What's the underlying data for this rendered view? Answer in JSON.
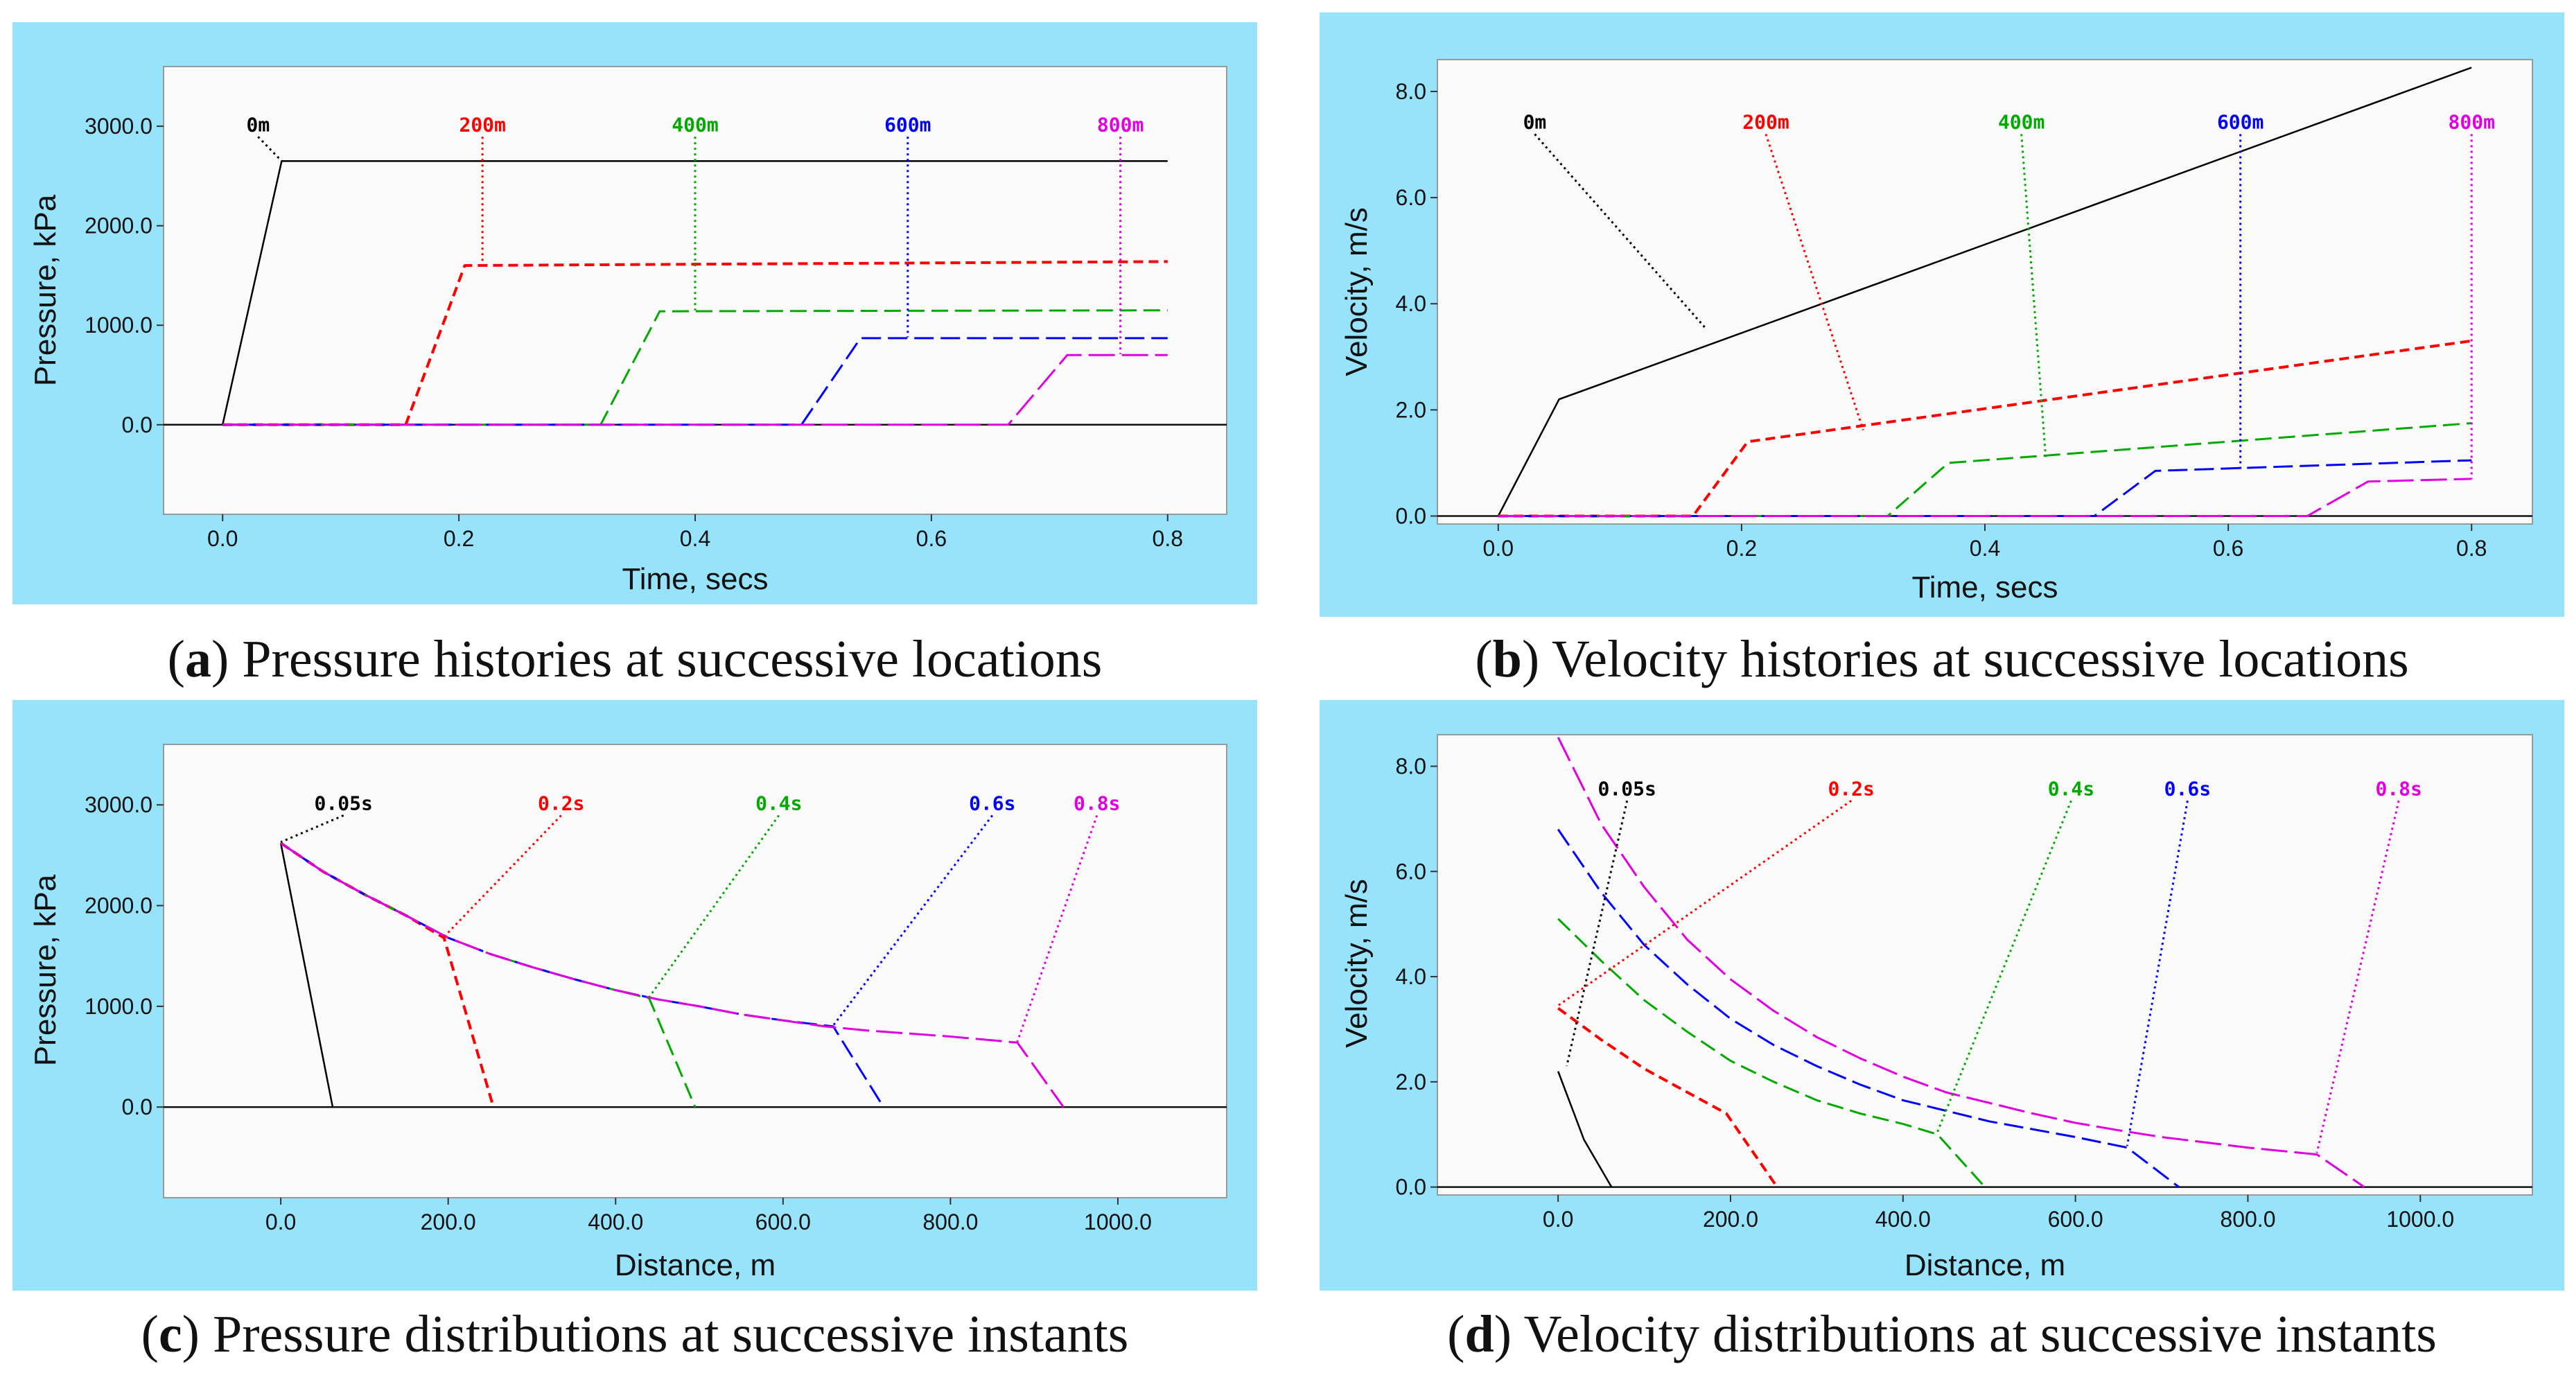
{
  "figure_captions": [
    {
      "letter": "a",
      "text": " Pressure histories at successive locations"
    },
    {
      "letter": "b",
      "text": " Velocity histories at successive locations"
    },
    {
      "letter": "c",
      "text": " Pressure distributions at successive instants"
    },
    {
      "letter": "d",
      "text": " Velocity distributions at successive instants"
    }
  ],
  "colors": {
    "panel_bg": "#97e3fb",
    "plot_bg": "#fafafa",
    "series": [
      "#000000",
      "#ff0000",
      "#00aa00",
      "#0000ff",
      "#e000e0"
    ]
  },
  "chart_data": [
    {
      "type": "line",
      "panel": "a",
      "xlabel": "Time, secs",
      "ylabel": "Pressure, kPa",
      "xlim": [
        -0.05,
        0.85
      ],
      "ylim": [
        -900,
        3600
      ],
      "xticks": [
        0.0,
        0.2,
        0.4,
        0.6,
        0.8
      ],
      "xtick_labels": [
        "0.0",
        "0.2",
        "0.4",
        "0.6",
        "0.8"
      ],
      "yticks": [
        0,
        1000,
        2000,
        3000
      ],
      "ytick_labels": [
        "0.0",
        "1000.0",
        "2000.0",
        "3000.0"
      ],
      "series": [
        {
          "name": "0m",
          "x": [
            0.0,
            0.05,
            0.8
          ],
          "y": [
            0,
            2650,
            2650
          ]
        },
        {
          "name": "200m",
          "x": [
            0.0,
            0.155,
            0.205,
            0.8
          ],
          "y": [
            0,
            0,
            1600,
            1640
          ]
        },
        {
          "name": "400m",
          "x": [
            0.0,
            0.32,
            0.37,
            0.8
          ],
          "y": [
            0,
            0,
            1140,
            1150
          ]
        },
        {
          "name": "600m",
          "x": [
            0.0,
            0.49,
            0.54,
            0.8
          ],
          "y": [
            0,
            0,
            870,
            870
          ]
        },
        {
          "name": "800m",
          "x": [
            0.0,
            0.665,
            0.715,
            0.8
          ],
          "y": [
            0,
            0,
            700,
            700
          ]
        }
      ],
      "annotations": [
        {
          "text": "0m",
          "x": 0.03,
          "y": 2950,
          "tip_x": 0.05,
          "tip_y": 2650
        },
        {
          "text": "200m",
          "x": 0.22,
          "y": 2950,
          "tip_x": 0.22,
          "tip_y": 1620
        },
        {
          "text": "400m",
          "x": 0.4,
          "y": 2950,
          "tip_x": 0.4,
          "tip_y": 1150
        },
        {
          "text": "600m",
          "x": 0.58,
          "y": 2950,
          "tip_x": 0.58,
          "tip_y": 880
        },
        {
          "text": "800m",
          "x": 0.76,
          "y": 2950,
          "tip_x": 0.76,
          "tip_y": 710
        }
      ]
    },
    {
      "type": "line",
      "panel": "b",
      "xlabel": "Time, secs",
      "ylabel": "Velocity, m/s",
      "xlim": [
        -0.05,
        0.85
      ],
      "ylim": [
        -0.15,
        8.6
      ],
      "xticks": [
        0.0,
        0.2,
        0.4,
        0.6,
        0.8
      ],
      "xtick_labels": [
        "0.0",
        "0.2",
        "0.4",
        "0.6",
        "0.8"
      ],
      "yticks": [
        0,
        2,
        4,
        6,
        8
      ],
      "ytick_labels": [
        "0.0",
        "2.0",
        "4.0",
        "6.0",
        "8.0"
      ],
      "series": [
        {
          "name": "0m",
          "x": [
            0.0,
            0.05,
            0.8
          ],
          "y": [
            0,
            2.2,
            8.45
          ]
        },
        {
          "name": "200m",
          "x": [
            0.0,
            0.16,
            0.205,
            0.8
          ],
          "y": [
            0,
            0,
            1.4,
            3.3
          ]
        },
        {
          "name": "400m",
          "x": [
            0.0,
            0.32,
            0.37,
            0.8
          ],
          "y": [
            0,
            0,
            1.0,
            1.75
          ]
        },
        {
          "name": "600m",
          "x": [
            0.0,
            0.49,
            0.54,
            0.8
          ],
          "y": [
            0,
            0,
            0.85,
            1.05
          ]
        },
        {
          "name": "800m",
          "x": [
            0.0,
            0.665,
            0.715,
            0.8
          ],
          "y": [
            0,
            0,
            0.65,
            0.7
          ]
        }
      ],
      "annotations": [
        {
          "text": "0m",
          "x": 0.03,
          "y": 7.3,
          "tip_x": 0.17,
          "tip_y": 3.55
        },
        {
          "text": "200m",
          "x": 0.22,
          "y": 7.3,
          "tip_x": 0.3,
          "tip_y": 1.62
        },
        {
          "text": "400m",
          "x": 0.43,
          "y": 7.3,
          "tip_x": 0.45,
          "tip_y": 1.1
        },
        {
          "text": "600m",
          "x": 0.61,
          "y": 7.3,
          "tip_x": 0.61,
          "tip_y": 0.88
        },
        {
          "text": "800m",
          "x": 0.8,
          "y": 7.3,
          "tip_x": 0.8,
          "tip_y": 0.7
        }
      ]
    },
    {
      "type": "line",
      "panel": "c",
      "xlabel": "Distance, m",
      "ylabel": "Pressure, kPa",
      "xlim": [
        -140,
        1130
      ],
      "ylim": [
        -900,
        3600
      ],
      "xticks": [
        0,
        200,
        400,
        600,
        800,
        1000
      ],
      "xtick_labels": [
        "0.0",
        "200.0",
        "400.0",
        "600.0",
        "800.0",
        "1000.0"
      ],
      "yticks": [
        0,
        1000,
        2000,
        3000
      ],
      "ytick_labels": [
        "0.0",
        "1000.0",
        "2000.0",
        "3000.0"
      ],
      "series": [
        {
          "name": "0.05s",
          "x": [
            0,
            62
          ],
          "y": [
            2620,
            0
          ]
        },
        {
          "name": "0.2s",
          "x": [
            0,
            50,
            100,
            150,
            195,
            254
          ],
          "y": [
            2620,
            2340,
            2110,
            1900,
            1680,
            0
          ]
        },
        {
          "name": "0.4s",
          "x": [
            0,
            50,
            100,
            150,
            200,
            250,
            300,
            350,
            400,
            440,
            495
          ],
          "y": [
            2620,
            2340,
            2110,
            1900,
            1680,
            1520,
            1390,
            1270,
            1160,
            1080,
            0
          ]
        },
        {
          "name": "0.6s",
          "x": [
            0,
            50,
            100,
            150,
            200,
            250,
            300,
            350,
            400,
            450,
            500,
            550,
            600,
            660,
            720
          ],
          "y": [
            2620,
            2340,
            2110,
            1900,
            1680,
            1520,
            1390,
            1270,
            1160,
            1070,
            1000,
            920,
            860,
            800,
            0
          ]
        },
        {
          "name": "0.8s",
          "x": [
            0,
            50,
            100,
            150,
            200,
            250,
            300,
            350,
            400,
            450,
            500,
            550,
            600,
            650,
            700,
            750,
            800,
            880,
            935
          ],
          "y": [
            2620,
            2340,
            2110,
            1900,
            1680,
            1520,
            1390,
            1270,
            1160,
            1070,
            1000,
            920,
            860,
            800,
            760,
            730,
            700,
            640,
            0
          ]
        }
      ],
      "annotations": [
        {
          "text": "0.05s",
          "x": 75,
          "y": 2950,
          "tip_x": 0,
          "tip_y": 2630
        },
        {
          "text": "0.2s",
          "x": 335,
          "y": 2950,
          "tip_x": 195,
          "tip_y": 1690
        },
        {
          "text": "0.4s",
          "x": 595,
          "y": 2950,
          "tip_x": 440,
          "tip_y": 1090
        },
        {
          "text": "0.6s",
          "x": 850,
          "y": 2950,
          "tip_x": 660,
          "tip_y": 810
        },
        {
          "text": "0.8s",
          "x": 975,
          "y": 2950,
          "tip_x": 880,
          "tip_y": 650
        }
      ]
    },
    {
      "type": "line",
      "panel": "d",
      "xlabel": "Distance, m",
      "ylabel": "Velocity, m/s",
      "xlim": [
        -140,
        1130
      ],
      "ylim": [
        -0.15,
        8.6
      ],
      "xticks": [
        0,
        200,
        400,
        600,
        800,
        1000
      ],
      "xtick_labels": [
        "0.0",
        "200.0",
        "400.0",
        "600.0",
        "800.0",
        "1000.0"
      ],
      "yticks": [
        0,
        2,
        4,
        6,
        8
      ],
      "ytick_labels": [
        "0.0",
        "2.0",
        "4.0",
        "6.0",
        "8.0"
      ],
      "series": [
        {
          "name": "0.05s",
          "x": [
            0,
            30,
            62
          ],
          "y": [
            2.2,
            0.9,
            0
          ]
        },
        {
          "name": "0.2s",
          "x": [
            0,
            50,
            100,
            150,
            195,
            254
          ],
          "y": [
            3.4,
            2.8,
            2.25,
            1.8,
            1.4,
            0
          ]
        },
        {
          "name": "0.4s",
          "x": [
            0,
            50,
            100,
            150,
            200,
            250,
            300,
            350,
            400,
            440,
            495
          ],
          "y": [
            5.1,
            4.3,
            3.55,
            2.95,
            2.4,
            2.0,
            1.65,
            1.4,
            1.2,
            1.0,
            0
          ]
        },
        {
          "name": "0.6s",
          "x": [
            0,
            50,
            100,
            150,
            200,
            250,
            300,
            350,
            400,
            450,
            500,
            550,
            600,
            660,
            720
          ],
          "y": [
            6.8,
            5.6,
            4.6,
            3.85,
            3.2,
            2.7,
            2.3,
            1.95,
            1.65,
            1.45,
            1.25,
            1.1,
            0.95,
            0.75,
            0
          ]
        },
        {
          "name": "0.8s",
          "x": [
            0,
            50,
            100,
            150,
            200,
            250,
            300,
            350,
            400,
            450,
            500,
            550,
            600,
            650,
            700,
            750,
            800,
            880,
            935
          ],
          "y": [
            8.55,
            6.9,
            5.7,
            4.7,
            3.95,
            3.35,
            2.85,
            2.45,
            2.1,
            1.8,
            1.6,
            1.4,
            1.22,
            1.08,
            0.95,
            0.85,
            0.75,
            0.62,
            0
          ]
        }
      ],
      "annotations": [
        {
          "text": "0.05s",
          "x": 80,
          "y": 7.45,
          "tip_x": 10,
          "tip_y": 2.3
        },
        {
          "text": "0.2s",
          "x": 340,
          "y": 7.45,
          "tip_x": 0,
          "tip_y": 3.45
        },
        {
          "text": "0.4s",
          "x": 595,
          "y": 7.45,
          "tip_x": 440,
          "tip_y": 1.05
        },
        {
          "text": "0.6s",
          "x": 730,
          "y": 7.45,
          "tip_x": 660,
          "tip_y": 0.78
        },
        {
          "text": "0.8s",
          "x": 975,
          "y": 7.45,
          "tip_x": 880,
          "tip_y": 0.65
        }
      ]
    }
  ]
}
